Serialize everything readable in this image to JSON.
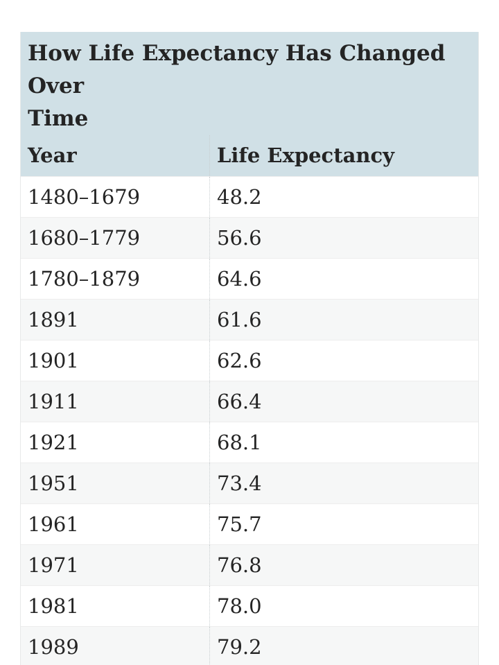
{
  "table": {
    "title": "How Life Expectancy Has Changed Over Time",
    "title_lines": [
      "How Life Expectancy Has Changed Over",
      "Time"
    ],
    "columns": {
      "year": "Year",
      "value": "Life Expectancy"
    },
    "rows": [
      {
        "year": "1480–1679",
        "value": "48.2"
      },
      {
        "year": "1680–1779",
        "value": "56.6"
      },
      {
        "year": "1780–1879",
        "value": "64.6"
      },
      {
        "year": "1891",
        "value": "61.6"
      },
      {
        "year": "1901",
        "value": "62.6"
      },
      {
        "year": "1911",
        "value": "66.4"
      },
      {
        "year": "1921",
        "value": "68.1"
      },
      {
        "year": "1951",
        "value": "73.4"
      },
      {
        "year": "1961",
        "value": "75.7"
      },
      {
        "year": "1971",
        "value": "76.8"
      },
      {
        "year": "1981",
        "value": "78.0"
      },
      {
        "year": "1989",
        "value": "79.2"
      }
    ],
    "colors": {
      "header_background": "#d0e0e6",
      "row_stripe": "#f6f7f7",
      "row_border": "#ededed",
      "outer_border": "#e7e9e9",
      "column_divider": "#c7cdcf",
      "text": "#242424"
    }
  },
  "chart_data": {
    "type": "table",
    "title": "How Life Expectancy Has Changed Over Time",
    "columns": [
      "Year",
      "Life Expectancy"
    ],
    "categories": [
      "1480–1679",
      "1680–1779",
      "1780–1879",
      "1891",
      "1901",
      "1911",
      "1921",
      "1951",
      "1961",
      "1971",
      "1981",
      "1989"
    ],
    "values": [
      48.2,
      56.6,
      64.6,
      61.6,
      62.6,
      66.4,
      68.1,
      73.4,
      75.7,
      76.8,
      78.0,
      79.2
    ]
  }
}
